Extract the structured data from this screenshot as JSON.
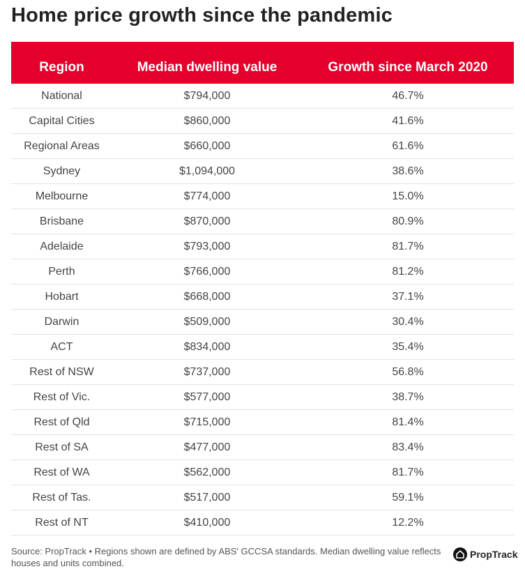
{
  "title": "Home price growth since the pandemic",
  "chart_data": {
    "type": "table",
    "title": "Home price growth since the pandemic",
    "columns": [
      "Region",
      "Median dwelling value",
      "Growth since March 2020"
    ],
    "rows": [
      [
        "National",
        "$794,000",
        "46.7%"
      ],
      [
        "Capital Cities",
        "$860,000",
        "41.6%"
      ],
      [
        "Regional Areas",
        "$660,000",
        "61.6%"
      ],
      [
        "Sydney",
        "$1,094,000",
        "38.6%"
      ],
      [
        "Melbourne",
        "$774,000",
        "15.0%"
      ],
      [
        "Brisbane",
        "$870,000",
        "80.9%"
      ],
      [
        "Adelaide",
        "$793,000",
        "81.7%"
      ],
      [
        "Perth",
        "$766,000",
        "81.2%"
      ],
      [
        "Hobart",
        "$668,000",
        "37.1%"
      ],
      [
        "Darwin",
        "$509,000",
        "30.4%"
      ],
      [
        "ACT",
        "$834,000",
        "35.4%"
      ],
      [
        "Rest of NSW",
        "$737,000",
        "56.8%"
      ],
      [
        "Rest of Vic.",
        "$577,000",
        "38.7%"
      ],
      [
        "Rest of Qld",
        "$715,000",
        "81.4%"
      ],
      [
        "Rest of SA",
        "$477,000",
        "83.4%"
      ],
      [
        "Rest of WA",
        "$562,000",
        "81.7%"
      ],
      [
        "Rest of Tas.",
        "$517,000",
        "59.1%"
      ],
      [
        "Rest of NT",
        "$410,000",
        "12.2%"
      ]
    ]
  },
  "footer": {
    "source": "Source: PropTrack • Regions shown are defined by ABS' GCCSA standards. Median dwelling value reflects houses and units combined.",
    "logo_text": "PropTrack",
    "logo_icon": "house-icon"
  },
  "colors": {
    "header_bg": "#e4002b"
  }
}
